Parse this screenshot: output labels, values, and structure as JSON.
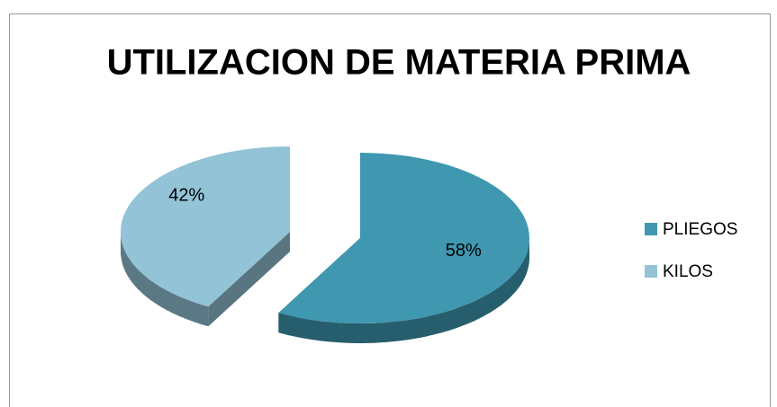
{
  "chart_data": {
    "type": "pie",
    "title": "UTILIZACION DE MATERIA PRIMA",
    "categories": [
      "PLIEGOS",
      "KILOS"
    ],
    "values": [
      58,
      42
    ],
    "value_labels": [
      "58%",
      "42%"
    ],
    "colors": [
      "#3f97b0",
      "#93c3d6"
    ],
    "legend": "right"
  }
}
